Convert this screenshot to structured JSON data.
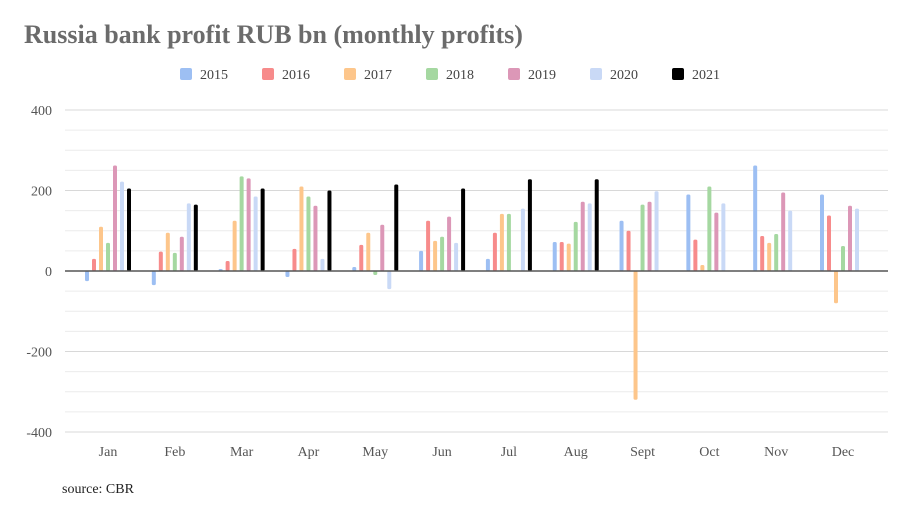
{
  "chart_data": {
    "type": "bar",
    "title": "Russia bank profit RUB bn (monthly profits)",
    "source": "source: CBR",
    "categories": [
      "Jan",
      "Feb",
      "Mar",
      "Apr",
      "May",
      "Jun",
      "Jul",
      "Aug",
      "Sept",
      "Oct",
      "Nov",
      "Dec"
    ],
    "series": [
      {
        "name": "2015",
        "color": "#9dbff3",
        "values": [
          -25,
          -35,
          5,
          -15,
          10,
          50,
          30,
          72,
          125,
          190,
          262,
          190
        ]
      },
      {
        "name": "2016",
        "color": "#f78b8b",
        "values": [
          30,
          48,
          25,
          55,
          65,
          125,
          95,
          72,
          100,
          78,
          87,
          138
        ]
      },
      {
        "name": "2017",
        "color": "#fdc68b",
        "values": [
          110,
          95,
          125,
          210,
          95,
          75,
          142,
          68,
          -320,
          15,
          70,
          -80
        ]
      },
      {
        "name": "2018",
        "color": "#a5d8a1",
        "values": [
          70,
          45,
          235,
          185,
          -10,
          85,
          142,
          122,
          165,
          210,
          92,
          62
        ]
      },
      {
        "name": "2019",
        "color": "#dc97b7",
        "values": [
          262,
          85,
          230,
          162,
          115,
          135,
          null,
          172,
          172,
          145,
          195,
          162
        ]
      },
      {
        "name": "2020",
        "color": "#c9d9f6",
        "values": [
          222,
          168,
          185,
          30,
          -45,
          70,
          155,
          168,
          198,
          168,
          150,
          155
        ]
      },
      {
        "name": "2021",
        "color": "#000000",
        "values": [
          205,
          165,
          205,
          200,
          215,
          205,
          228,
          228,
          null,
          null,
          null,
          null
        ]
      }
    ],
    "ylim": [
      -400,
      400
    ],
    "yticks": [
      400,
      200,
      0,
      -200,
      -400
    ],
    "grid": true,
    "legend": "top"
  }
}
